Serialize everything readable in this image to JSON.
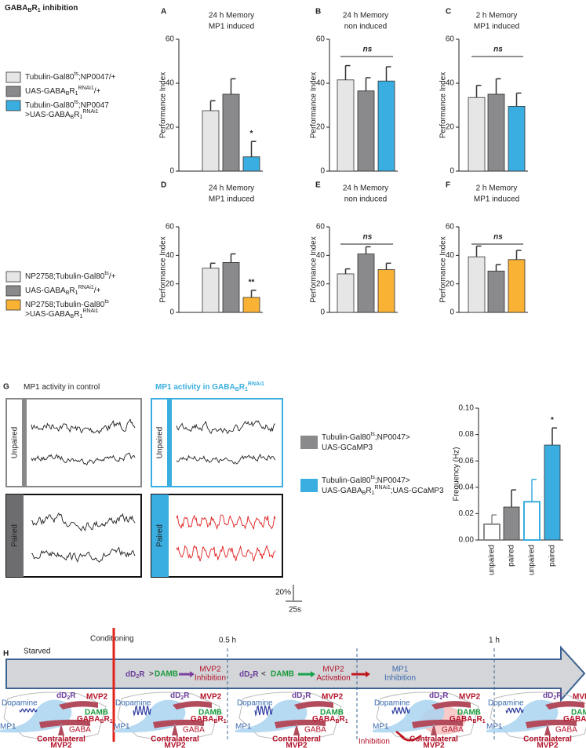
{
  "title": [
    [
      {
        "text": "GABA"
      },
      {
        "text": "B",
        "pos": "sub"
      },
      {
        "text": "R"
      },
      {
        "text": "1",
        "pos": "sub"
      },
      {
        "text": " inhibition"
      }
    ]
  ],
  "legend_top": [
    {
      "color": "#e6e6e7",
      "label": [
        [
          {
            "text": "Tubulin-Gal80"
          },
          {
            "text": "ts",
            "pos": "sup"
          },
          {
            "text": ";NP0047/+"
          }
        ]
      ]
    },
    {
      "color": "#8a8a8c",
      "label": [
        [
          {
            "text": "UAS-GABA"
          },
          {
            "text": "B",
            "pos": "sub"
          },
          {
            "text": "R"
          },
          {
            "text": "1",
            "pos": "sub"
          },
          {
            "text": "RNAi1",
            "pos": "sup"
          },
          {
            "text": "/+"
          }
        ]
      ]
    },
    {
      "color": "#3aaee0",
      "label": [
        [
          {
            "text": "Tubulin-Gal80"
          },
          {
            "text": "ts",
            "pos": "sup"
          },
          {
            "text": ";NP0047"
          }
        ],
        [
          {
            "text": ">UAS-GABA"
          },
          {
            "text": "B",
            "pos": "sub"
          },
          {
            "text": "R"
          },
          {
            "text": "1",
            "pos": "sub"
          },
          {
            "text": "RNAi1",
            "pos": "sup"
          }
        ]
      ]
    }
  ],
  "legend_mid": [
    {
      "color": "#e6e6e7",
      "label": [
        [
          {
            "text": "NP2758;Tubulin-Gal80"
          },
          {
            "text": "ts",
            "pos": "sup"
          },
          {
            "text": "/+"
          }
        ]
      ]
    },
    {
      "color": "#8a8a8c",
      "label": [
        [
          {
            "text": "UAS-GABA"
          },
          {
            "text": "B",
            "pos": "sub"
          },
          {
            "text": "R"
          },
          {
            "text": "1",
            "pos": "sub"
          },
          {
            "text": "RNAi1",
            "pos": "sup"
          },
          {
            "text": "/+"
          }
        ]
      ]
    },
    {
      "color": "#f9b234",
      "label": [
        [
          {
            "text": "NP2758;Tubulin-Gal80"
          },
          {
            "text": "ts",
            "pos": "sup"
          }
        ],
        [
          {
            "text": ">UAS-GABA"
          },
          {
            "text": "B",
            "pos": "sub"
          },
          {
            "text": "R"
          },
          {
            "text": "1",
            "pos": "sub"
          },
          {
            "text": "RNAi1",
            "pos": "sup"
          }
        ]
      ]
    }
  ],
  "chart_data": [
    {
      "type": "bar",
      "panel": "A",
      "title": [
        "24 h Memory",
        "MP1 induced"
      ],
      "ylabel": "Performance Index",
      "categories": [
        null,
        null,
        null
      ],
      "values": [
        27.5,
        35,
        6.5
      ],
      "errors": [
        4.5,
        7,
        7
      ],
      "colors": [
        "#e6e6e7",
        "#8a8a8c",
        "#3aaee0"
      ],
      "ylim": [
        0,
        60
      ],
      "yticks": [
        0,
        20,
        40,
        60
      ],
      "annotation": "*"
    },
    {
      "type": "bar",
      "panel": "B",
      "title": [
        "24 h Memory",
        "non induced"
      ],
      "ylabel": "Performance Index",
      "categories": [
        null,
        null,
        null
      ],
      "values": [
        41.5,
        36.5,
        41
      ],
      "errors": [
        6.5,
        6,
        6.5
      ],
      "colors": [
        "#e6e6e7",
        "#8a8a8c",
        "#3aaee0"
      ],
      "ylim": [
        0,
        60
      ],
      "yticks": [
        0,
        20,
        40,
        60
      ],
      "annotation": "ns"
    },
    {
      "type": "bar",
      "panel": "C",
      "title": [
        "2 h Memory",
        "MP1 induced"
      ],
      "ylabel": "Performance Index",
      "categories": [
        null,
        null,
        null
      ],
      "values": [
        33.5,
        35,
        29.5
      ],
      "errors": [
        5.5,
        7,
        6
      ],
      "colors": [
        "#e6e6e7",
        "#8a8a8c",
        "#3aaee0"
      ],
      "ylim": [
        0,
        60
      ],
      "yticks": [
        0,
        20,
        40,
        60
      ],
      "annotation": "ns"
    },
    {
      "type": "bar",
      "panel": "D",
      "title": [
        "24 h Memory",
        "MP1 induced"
      ],
      "ylabel": "Performance Index",
      "categories": [
        null,
        null,
        null
      ],
      "values": [
        31,
        35,
        10.5
      ],
      "errors": [
        3.5,
        6,
        5
      ],
      "colors": [
        "#e6e6e7",
        "#8a8a8c",
        "#f9b234"
      ],
      "ylim": [
        0,
        60
      ],
      "yticks": [
        0,
        20,
        40,
        60
      ],
      "annotation": "**"
    },
    {
      "type": "bar",
      "panel": "E",
      "title": [
        "24 h Memory",
        "non induced"
      ],
      "ylabel": "Performance Index",
      "categories": [
        null,
        null,
        null
      ],
      "values": [
        27,
        41,
        30
      ],
      "errors": [
        3.5,
        5,
        4.5
      ],
      "colors": [
        "#e6e6e7",
        "#8a8a8c",
        "#f9b234"
      ],
      "ylim": [
        0,
        60
      ],
      "yticks": [
        0,
        20,
        40,
        60
      ],
      "annotation": "ns"
    },
    {
      "type": "bar",
      "panel": "F",
      "title": [
        "2 h Memory",
        "MP1 induced"
      ],
      "ylabel": "Performance Index",
      "categories": [
        null,
        null,
        null
      ],
      "values": [
        39,
        29,
        37
      ],
      "errors": [
        7.5,
        4.5,
        6.5
      ],
      "colors": [
        "#e6e6e7",
        "#8a8a8c",
        "#f9b234"
      ],
      "ylim": [
        0,
        60
      ],
      "yticks": [
        0,
        20,
        40,
        60
      ],
      "annotation": "ns"
    },
    {
      "type": "bar",
      "ylabel": "Frequency (Hz)",
      "categories": [
        "unpaired",
        "paired",
        "unpaired",
        "paired"
      ],
      "values": [
        0.012,
        0.025,
        0.029,
        0.072
      ],
      "errors": [
        0.007,
        0.013,
        0.017,
        0.013
      ],
      "colors": [
        "#8a8a8c",
        "#8a8a8c",
        "#3aaee0",
        "#3aaee0"
      ],
      "filled": [
        false,
        true,
        false,
        true
      ],
      "ylim": [
        0,
        0.1
      ],
      "yticks": [
        {
          "value": 0,
          "label": "0.00"
        },
        {
          "value": 0.02,
          "label": "0.02"
        },
        {
          "value": 0.04,
          "label": "0.04"
        },
        {
          "value": 0.06,
          "label": "0.06"
        },
        {
          "value": 0.08,
          "label": "0.08"
        },
        {
          "value": 0.1,
          "label": "0.10"
        }
      ],
      "annotation": "*"
    }
  ],
  "panel_g": "G",
  "panel_h": "H",
  "traces": {
    "control": [
      [
        {
          "text": "MP1 activity in control"
        }
      ]
    ],
    "rnai": [
      [
        {
          "text": "MP1 activity in GABA"
        },
        {
          "text": "B",
          "pos": "sub"
        },
        {
          "text": "R"
        },
        {
          "text": "1",
          "pos": "sub"
        },
        {
          "text": "RNAi1",
          "pos": "sup"
        }
      ]
    ],
    "unpaired": "Unpaired",
    "paired": "Paired",
    "scale_y": "20%",
    "scale_x": "25s"
  },
  "legend_g": [
    {
      "color": "#8a8a8c",
      "label": [
        [
          {
            "text": "Tubulin-Gal80"
          },
          {
            "text": "ts",
            "pos": "sup"
          },
          {
            "text": ";NP0047>"
          }
        ],
        [
          {
            "text": "UAS-GCaMP3"
          }
        ]
      ]
    },
    {
      "color": "#3aaee0",
      "label": [
        [
          {
            "text": "Tubulin-Gal80"
          },
          {
            "text": "ts",
            "pos": "sup"
          },
          {
            "text": ";NP0047>"
          }
        ],
        [
          {
            "text": "UAS-GABA"
          },
          {
            "text": "B",
            "pos": "sub"
          },
          {
            "text": "R"
          },
          {
            "text": "1",
            "pos": "sub"
          },
          {
            "text": "RNAi1",
            "pos": "sup"
          },
          {
            "text": ";UAS-GCaMP3"
          }
        ]
      ]
    }
  ],
  "timeline": {
    "starved": "Starved",
    "conditioning": "Conditioning",
    "half": "0.5 h",
    "one": "1 h",
    "gt": ">",
    "lt": "<",
    "activation": "Activation"
  },
  "labels": {
    "dopamine": "Dopamine",
    "mp1": "MP1",
    "d2r": [
      [
        {
          "text": "dD"
        },
        {
          "text": "2",
          "pos": "sub"
        },
        {
          "text": "R"
        }
      ]
    ],
    "mvp2": "MVP2",
    "damb": "DAMB",
    "gababr1": [
      [
        {
          "text": "GABA"
        },
        {
          "text": "B",
          "pos": "sub"
        },
        {
          "text": "R"
        },
        {
          "text": "1",
          "pos": "sub"
        }
      ]
    ],
    "gaba": "GABA",
    "contralateral": "Contralateral",
    "inhibition": "Inhibition"
  }
}
